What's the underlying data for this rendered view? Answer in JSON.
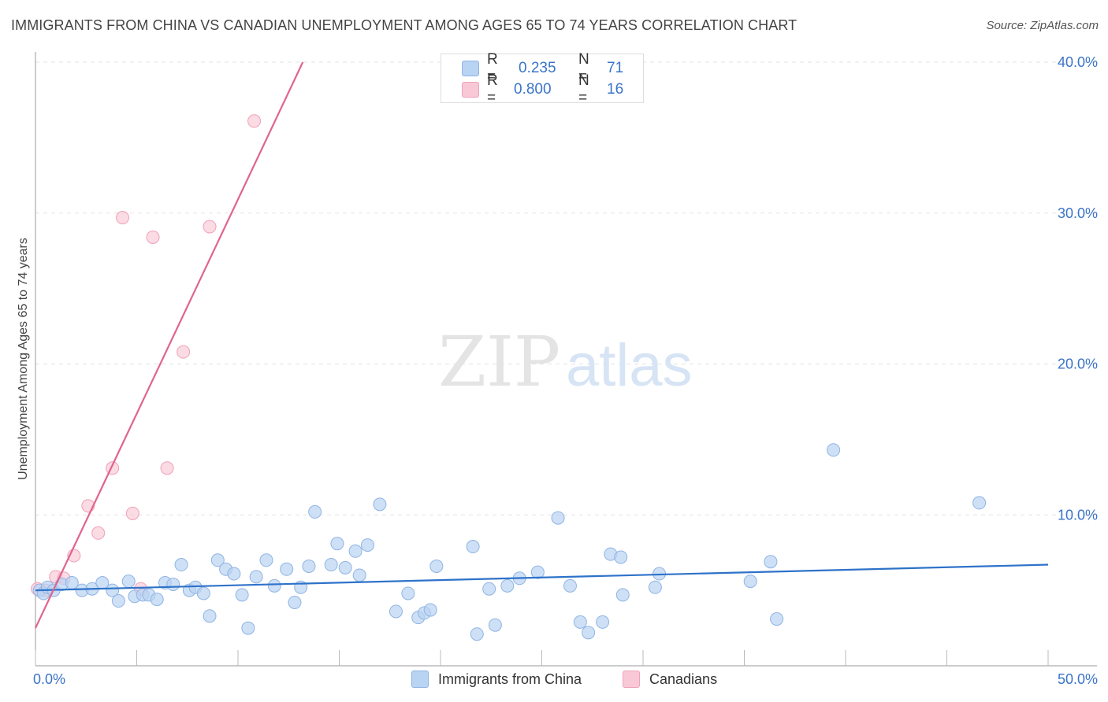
{
  "title": "IMMIGRANTS FROM CHINA VS CANADIAN UNEMPLOYMENT AMONG AGES 65 TO 74 YEARS CORRELATION CHART",
  "source": "Source: ZipAtlas.com",
  "watermark": {
    "zip": "ZIP",
    "atlas": "atlas"
  },
  "colors": {
    "blue_fill": "#b9d3f2",
    "blue_stroke": "#8fb4e3",
    "blue_line": "#2e72c9",
    "pink_fill": "#f9c8d6",
    "pink_stroke": "#f0a1b8",
    "pink_line": "#e0648f",
    "tick_label": "#3a74c8",
    "grid": "#e2e2e2"
  },
  "legend_top": {
    "rows": [
      {
        "r_label": "R =",
        "r_value": "0.235",
        "n_label": "N =",
        "n_value": "71"
      },
      {
        "r_label": "R =",
        "r_value": "0.800",
        "n_label": "N =",
        "n_value": "16"
      }
    ]
  },
  "legend_bottom": {
    "series1": "Immigrants from China",
    "series2": "Canadians"
  },
  "chart_data": {
    "type": "scatter",
    "title": "IMMIGRANTS FROM CHINA VS CANADIAN UNEMPLOYMENT AMONG AGES 65 TO 74 YEARS CORRELATION CHART",
    "xlabel": "",
    "ylabel": "Unemployment Among Ages 65 to 74 years",
    "xlim": [
      0,
      50
    ],
    "ylim": [
      0,
      40
    ],
    "x_tick_labels": [
      "0.0%",
      "50.0%"
    ],
    "y_ticks": [
      10,
      20,
      30,
      40
    ],
    "y_tick_labels": [
      "10.0%",
      "20.0%",
      "30.0%",
      "40.0%"
    ],
    "series": [
      {
        "name": "Immigrants from China",
        "color": "blue",
        "R": 0.235,
        "N": 71,
        "trend": {
          "x": [
            0,
            50
          ],
          "y": [
            5.0,
            6.7
          ]
        },
        "points": [
          [
            0.2,
            5.0
          ],
          [
            0.4,
            4.8
          ],
          [
            0.6,
            5.2
          ],
          [
            0.9,
            5.0
          ],
          [
            1.3,
            5.4
          ],
          [
            1.8,
            5.5
          ],
          [
            2.3,
            5.0
          ],
          [
            2.8,
            5.1
          ],
          [
            3.3,
            5.5
          ],
          [
            3.8,
            5.0
          ],
          [
            4.1,
            4.3
          ],
          [
            4.6,
            5.6
          ],
          [
            4.9,
            4.6
          ],
          [
            5.3,
            4.7
          ],
          [
            5.6,
            4.7
          ],
          [
            6.0,
            4.4
          ],
          [
            6.4,
            5.5
          ],
          [
            6.8,
            5.4
          ],
          [
            7.2,
            6.7
          ],
          [
            7.6,
            5.0
          ],
          [
            7.9,
            5.2
          ],
          [
            8.3,
            4.8
          ],
          [
            8.6,
            3.3
          ],
          [
            9.0,
            7.0
          ],
          [
            9.4,
            6.4
          ],
          [
            9.8,
            6.1
          ],
          [
            10.2,
            4.7
          ],
          [
            10.5,
            2.5
          ],
          [
            10.9,
            5.9
          ],
          [
            11.4,
            7.0
          ],
          [
            11.8,
            5.3
          ],
          [
            12.4,
            6.4
          ],
          [
            12.8,
            4.2
          ],
          [
            13.1,
            5.2
          ],
          [
            13.5,
            6.6
          ],
          [
            13.8,
            10.2
          ],
          [
            14.6,
            6.7
          ],
          [
            14.9,
            8.1
          ],
          [
            15.3,
            6.5
          ],
          [
            15.8,
            7.6
          ],
          [
            16.0,
            6.0
          ],
          [
            16.4,
            8.0
          ],
          [
            17.0,
            10.7
          ],
          [
            17.8,
            3.6
          ],
          [
            18.4,
            4.8
          ],
          [
            18.9,
            3.2
          ],
          [
            19.2,
            3.5
          ],
          [
            19.5,
            3.7
          ],
          [
            19.8,
            6.6
          ],
          [
            21.6,
            7.9
          ],
          [
            21.8,
            2.1
          ],
          [
            22.4,
            5.1
          ],
          [
            22.7,
            2.7
          ],
          [
            23.3,
            5.3
          ],
          [
            23.9,
            5.8
          ],
          [
            24.8,
            6.2
          ],
          [
            25.8,
            9.8
          ],
          [
            26.4,
            5.3
          ],
          [
            26.9,
            2.9
          ],
          [
            27.3,
            2.2
          ],
          [
            28.0,
            2.9
          ],
          [
            28.4,
            7.4
          ],
          [
            28.9,
            7.2
          ],
          [
            29.0,
            4.7
          ],
          [
            30.6,
            5.2
          ],
          [
            30.8,
            6.1
          ],
          [
            35.3,
            5.6
          ],
          [
            36.3,
            6.9
          ],
          [
            36.6,
            3.1
          ],
          [
            39.4,
            14.3
          ],
          [
            46.6,
            10.8
          ]
        ]
      },
      {
        "name": "Canadians",
        "color": "pink",
        "R": 0.8,
        "N": 16,
        "trend": {
          "x": [
            0,
            13.2
          ],
          "y": [
            2.5,
            40
          ]
        },
        "points": [
          [
            0.1,
            5.1
          ],
          [
            0.5,
            5.0
          ],
          [
            1.0,
            5.9
          ],
          [
            1.4,
            5.8
          ],
          [
            1.9,
            7.3
          ],
          [
            2.6,
            10.6
          ],
          [
            3.1,
            8.8
          ],
          [
            3.8,
            13.1
          ],
          [
            4.3,
            29.7
          ],
          [
            4.8,
            10.1
          ],
          [
            5.2,
            5.1
          ],
          [
            5.8,
            28.4
          ],
          [
            6.5,
            13.1
          ],
          [
            7.3,
            20.8
          ],
          [
            8.6,
            29.1
          ],
          [
            10.8,
            36.1
          ]
        ]
      }
    ]
  }
}
